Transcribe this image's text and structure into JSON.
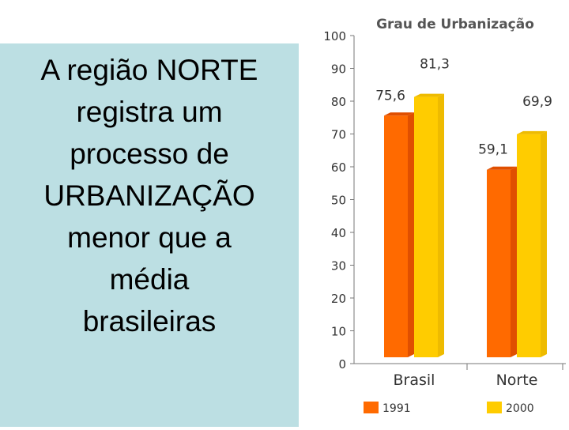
{
  "headline": {
    "lines": [
      "A região NORTE",
      "registra um",
      "processo de",
      "URBANIZAÇÃO",
      "menor que a",
      "média",
      "brasileiras"
    ]
  },
  "colors": {
    "panel": "#bcdfe3",
    "series_1991": "#ff6a00",
    "series_1991_side": "#e04f00",
    "series_2000": "#ffcc00",
    "series_2000_side": "#eebb00"
  },
  "chart_data": {
    "type": "bar",
    "title": "Grau de Urbanização",
    "categories": [
      "Brasil",
      "Norte"
    ],
    "series": [
      {
        "name": "1991",
        "values": [
          75.6,
          59.1
        ],
        "labels": [
          "75,6",
          "59,1"
        ]
      },
      {
        "name": "2000",
        "values": [
          81.3,
          69.9
        ],
        "labels": [
          "81,3",
          "69,9"
        ]
      }
    ],
    "ylim": [
      0,
      100
    ],
    "yticks": [
      0,
      10,
      20,
      30,
      40,
      50,
      60,
      70,
      80,
      90,
      100
    ],
    "grid": false,
    "legend_position": "bottom"
  }
}
